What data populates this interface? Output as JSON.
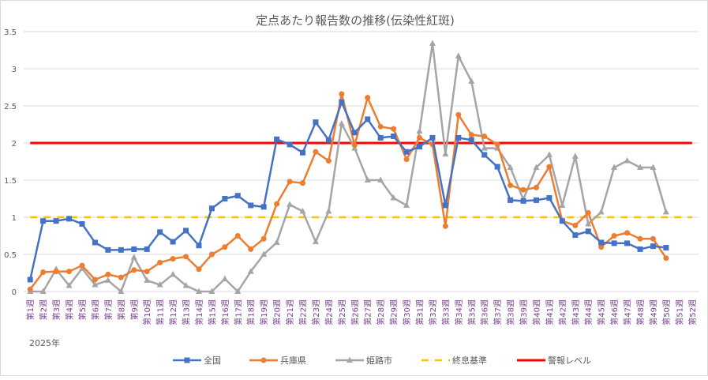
{
  "chart_data": {
    "type": "line",
    "title": "定点あたり報告数の推移(伝染性紅斑)",
    "year_label": "2025年",
    "ylim": [
      0,
      3.5
    ],
    "yticks": [
      "0",
      "0.5",
      "1",
      "1.5",
      "2",
      "2.5",
      "3",
      "3.5"
    ],
    "ytick_values": [
      0,
      0.5,
      1,
      1.5,
      2,
      2.5,
      3,
      3.5
    ],
    "grid": true,
    "legend_position": "bottom",
    "categories": [
      "第1週",
      "第2週",
      "第3週",
      "第4週",
      "第5週",
      "第6週",
      "第7週",
      "第8週",
      "第9週",
      "第10週",
      "第11週",
      "第12週",
      "第13週",
      "第14週",
      "第15週",
      "第16週",
      "第17週",
      "第18週",
      "第19週",
      "第20週",
      "第21週",
      "第22週",
      "第23週",
      "第24週",
      "第25週",
      "第26週",
      "第27週",
      "第28週",
      "第29週",
      "第30週",
      "第31週",
      "第32週",
      "第33週",
      "第34週",
      "第35週",
      "第36週",
      "第37週",
      "第38週",
      "第39週",
      "第40週",
      "第41週",
      "第42週",
      "第43週",
      "第44週",
      "第45週",
      "第46週",
      "第47週",
      "第48週",
      "第49週",
      "第50週",
      "第51週",
      "第52週"
    ],
    "series": [
      {
        "name": "全国",
        "color": "#4472c4",
        "marker": "square",
        "values": [
          0.16,
          0.95,
          0.95,
          0.98,
          0.91,
          0.66,
          0.56,
          0.56,
          0.57,
          0.57,
          0.8,
          0.67,
          0.82,
          0.62,
          1.12,
          1.25,
          1.29,
          1.16,
          1.14,
          2.05,
          1.98,
          1.87,
          2.28,
          2.04,
          2.55,
          2.14,
          2.32,
          2.07,
          2.09,
          1.88,
          1.95,
          2.07,
          1.16,
          2.07,
          2.04,
          1.84,
          1.68,
          1.23,
          1.22,
          1.23,
          1.26,
          0.95,
          0.76,
          0.81,
          0.66,
          0.65,
          0.65,
          0.57,
          0.61,
          0.59,
          null,
          null
        ]
      },
      {
        "name": "兵庫県",
        "color": "#ed7d31",
        "marker": "circle",
        "values": [
          0.03,
          0.26,
          0.27,
          0.27,
          0.35,
          0.16,
          0.23,
          0.19,
          0.29,
          0.27,
          0.39,
          0.44,
          0.47,
          0.3,
          0.5,
          0.6,
          0.75,
          0.57,
          0.71,
          1.18,
          1.48,
          1.46,
          1.88,
          1.76,
          2.66,
          1.97,
          2.61,
          2.22,
          2.19,
          1.78,
          2.07,
          1.98,
          0.88,
          2.38,
          2.11,
          2.09,
          1.98,
          1.43,
          1.37,
          1.4,
          1.68,
          0.95,
          0.89,
          1.06,
          0.6,
          0.75,
          0.79,
          0.71,
          0.71,
          0.45,
          null,
          null
        ]
      },
      {
        "name": "姫路市",
        "color": "#a5a5a5",
        "marker": "triangle",
        "values": [
          0,
          0,
          0.3,
          0.08,
          0.31,
          0.09,
          0.15,
          0,
          0.46,
          0.15,
          0.09,
          0.23,
          0.08,
          0,
          0,
          0.17,
          0,
          0.27,
          0.5,
          0.66,
          1.17,
          1.08,
          0.67,
          1.08,
          2.26,
          1.93,
          1.5,
          1.5,
          1.26,
          1.16,
          2.16,
          3.34,
          1.85,
          3.17,
          2.83,
          1.93,
          1.93,
          1.67,
          1.24,
          1.67,
          1.84,
          1.16,
          1.82,
          0.91,
          1.07,
          1.67,
          1.76,
          1.67,
          1.67,
          1.07,
          null,
          null
        ]
      },
      {
        "name": "終息基準",
        "color": "#ffc000",
        "style": "dashed",
        "constant": 1
      },
      {
        "name": "警報レベル",
        "color": "#ff0000",
        "style": "solid",
        "constant": 2
      }
    ]
  }
}
